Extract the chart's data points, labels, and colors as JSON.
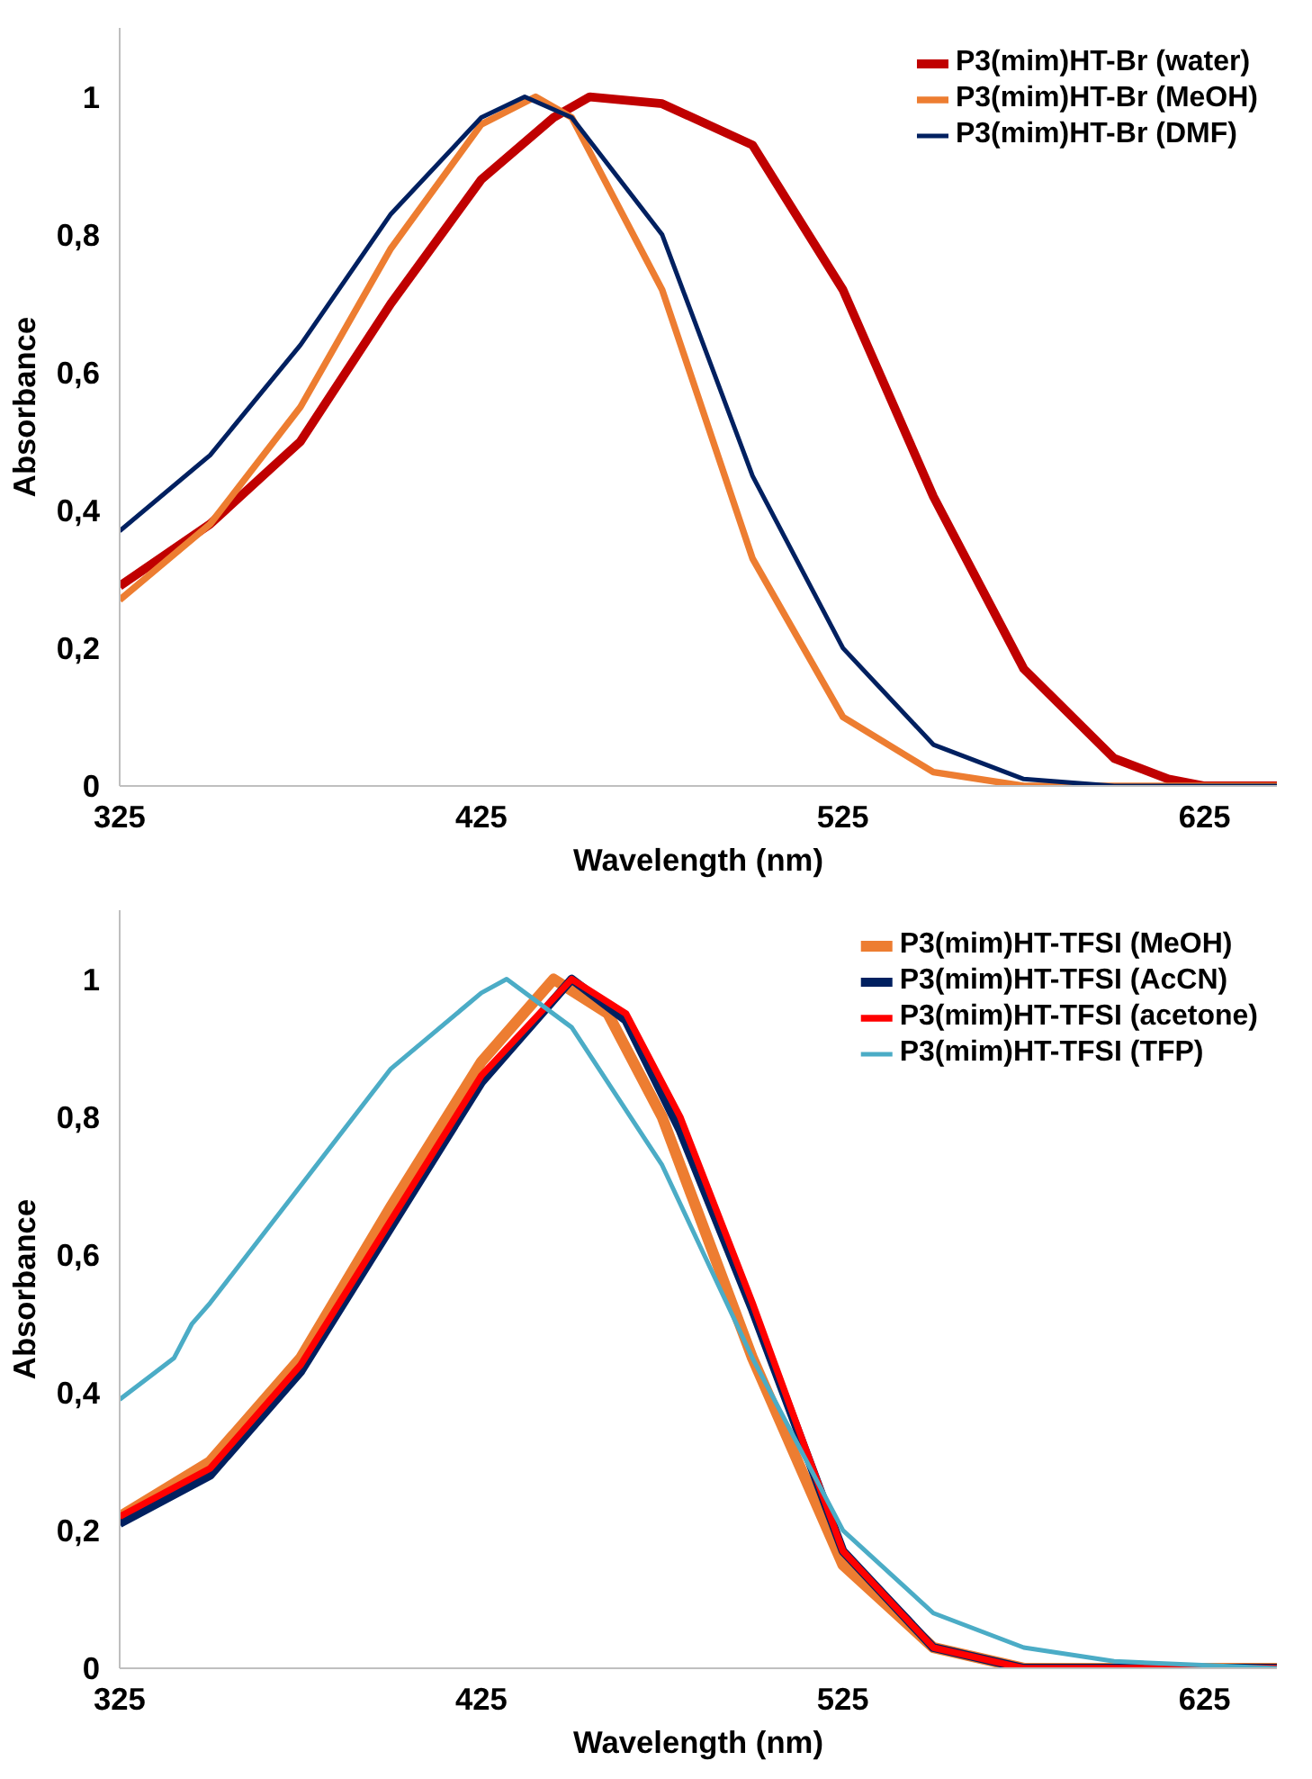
{
  "chart_data": [
    {
      "type": "line",
      "xlabel": "Wavelength (nm)",
      "ylabel": "Absorbance",
      "xlim": [
        325,
        645
      ],
      "ylim": [
        0,
        1.1
      ],
      "xticks": [
        325,
        425,
        525,
        625
      ],
      "yticks": [
        0,
        {
          "value": 0.2,
          "label": "0,2"
        },
        {
          "value": 0.4,
          "label": "0,4"
        },
        {
          "value": 0.6,
          "label": "0,6"
        },
        {
          "value": 0.8,
          "label": "0,8"
        },
        1
      ],
      "grid": false,
      "legend": "top right",
      "marker": "none",
      "line_style": "solid",
      "series": [
        {
          "name": "P3(mim)HT-Br (water)",
          "color": "#c00000",
          "x": [
            325,
            350,
            375,
            400,
            425,
            445,
            455,
            475,
            500,
            525,
            550,
            575,
            600,
            615,
            625,
            645
          ],
          "values": [
            0.29,
            0.38,
            0.5,
            0.7,
            0.88,
            0.97,
            1.0,
            0.99,
            0.93,
            0.72,
            0.42,
            0.17,
            0.04,
            0.01,
            0.0,
            0.0
          ]
        },
        {
          "name": "P3(mim)HT-Br (MeOH)",
          "color": "#ed7d31",
          "x": [
            325,
            350,
            375,
            400,
            425,
            440,
            450,
            475,
            500,
            525,
            550,
            575,
            645
          ],
          "values": [
            0.27,
            0.38,
            0.55,
            0.78,
            0.96,
            1.0,
            0.97,
            0.72,
            0.33,
            0.1,
            0.02,
            0.0,
            0.0
          ]
        },
        {
          "name": "P3(mim)HT-Br (DMF)",
          "color": "#002060",
          "x": [
            325,
            350,
            375,
            400,
            425,
            437,
            450,
            475,
            500,
            525,
            550,
            575,
            600,
            645
          ],
          "values": [
            0.37,
            0.48,
            0.64,
            0.83,
            0.97,
            1.0,
            0.97,
            0.8,
            0.45,
            0.2,
            0.06,
            0.01,
            0.0,
            0.0
          ]
        }
      ]
    },
    {
      "type": "line",
      "xlabel": "Wavelength (nm)",
      "ylabel": "Absorbance",
      "xlim": [
        325,
        645
      ],
      "ylim": [
        0,
        1.1
      ],
      "xticks": [
        325,
        425,
        525,
        625
      ],
      "yticks": [
        0,
        {
          "value": 0.2,
          "label": "0,2"
        },
        {
          "value": 0.4,
          "label": "0,4"
        },
        {
          "value": 0.6,
          "label": "0,6"
        },
        {
          "value": 0.8,
          "label": "0,8"
        },
        1
      ],
      "grid": false,
      "legend": "top right",
      "marker": "none",
      "line_style": "solid",
      "series": [
        {
          "name": "P3(mim)HT-TFSI (MeOH)",
          "color": "#ed7d31",
          "x": [
            325,
            350,
            375,
            400,
            425,
            445,
            460,
            475,
            500,
            525,
            550,
            575,
            645
          ],
          "values": [
            0.22,
            0.3,
            0.45,
            0.67,
            0.88,
            1.0,
            0.95,
            0.8,
            0.45,
            0.15,
            0.03,
            0.0,
            0.0
          ]
        },
        {
          "name": "P3(mim)HT-TFSI (AcCN)",
          "color": "#002060",
          "x": [
            325,
            350,
            375,
            400,
            425,
            450,
            465,
            480,
            500,
            525,
            550,
            575,
            645
          ],
          "values": [
            0.21,
            0.28,
            0.43,
            0.64,
            0.85,
            1.0,
            0.94,
            0.78,
            0.52,
            0.17,
            0.03,
            0.0,
            0.0
          ]
        },
        {
          "name": "P3(mim)HT-TFSI (acetone)",
          "color": "#ff0000",
          "x": [
            325,
            350,
            375,
            400,
            425,
            450,
            465,
            480,
            500,
            525,
            550,
            575,
            645
          ],
          "values": [
            0.22,
            0.29,
            0.44,
            0.65,
            0.86,
            1.0,
            0.95,
            0.8,
            0.53,
            0.17,
            0.03,
            0.0,
            0.0
          ]
        },
        {
          "name": "P3(mim)HT-TFSI (TFP)",
          "color": "#4bacc6",
          "x": [
            325,
            340,
            345,
            350,
            375,
            400,
            425,
            432,
            450,
            475,
            500,
            525,
            550,
            575,
            600,
            645
          ],
          "values": [
            0.39,
            0.45,
            0.5,
            0.53,
            0.7,
            0.87,
            0.98,
            1.0,
            0.93,
            0.73,
            0.45,
            0.2,
            0.08,
            0.03,
            0.01,
            0.0
          ]
        }
      ]
    }
  ]
}
